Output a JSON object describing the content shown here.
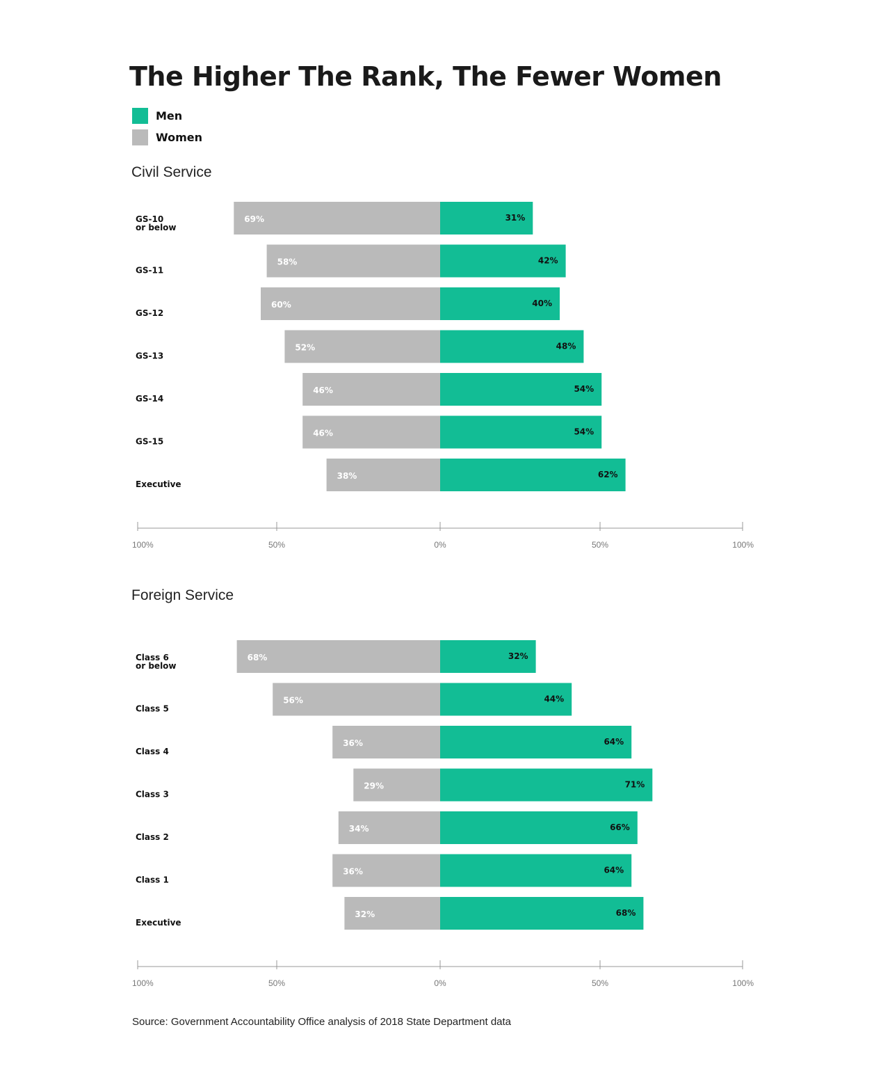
{
  "title": "The Higher The Rank, The Fewer Women",
  "legend": [
    {
      "label": "Men",
      "color": "#12bd95"
    },
    {
      "label": "Women",
      "color": "#bababa"
    }
  ],
  "colors": {
    "men": "#12bd95",
    "women": "#bababa",
    "axis": "#999999"
  },
  "source": "Source: Government Accountability Office analysis of 2018 State Department data",
  "chart_data": [
    {
      "type": "bar",
      "title": "Civil Service",
      "categories": [
        [
          "GS-10",
          "or below"
        ],
        [
          "GS-11"
        ],
        [
          "GS-12"
        ],
        [
          "GS-13"
        ],
        [
          "GS-14"
        ],
        [
          "GS-15"
        ],
        [
          "Executive"
        ]
      ],
      "series": [
        {
          "name": "Women",
          "values": [
            69,
            58,
            60,
            52,
            46,
            46,
            38
          ],
          "labels": [
            "69%",
            "58%",
            "60%",
            "52%",
            "46%",
            "46%",
            "38%"
          ]
        },
        {
          "name": "Men",
          "values": [
            31,
            42,
            40,
            48,
            54,
            54,
            62
          ],
          "labels": [
            "31%",
            "42%",
            "40%",
            "48%",
            "54%",
            "54%",
            "62%"
          ]
        }
      ],
      "xlim": [
        -100,
        100
      ],
      "ticks": [
        {
          "value": -100,
          "label": "100%"
        },
        {
          "value": -50,
          "label": "50%"
        },
        {
          "value": 0,
          "label": "0%"
        },
        {
          "value": 50,
          "label": "50%"
        },
        {
          "value": 100,
          "label": "100%"
        }
      ]
    },
    {
      "type": "bar",
      "title": "Foreign Service",
      "categories": [
        [
          "Class 6",
          "or below"
        ],
        [
          "Class 5"
        ],
        [
          "Class 4"
        ],
        [
          "Class 3"
        ],
        [
          "Class 2"
        ],
        [
          "Class 1"
        ],
        [
          "Executive"
        ]
      ],
      "series": [
        {
          "name": "Women",
          "values": [
            68,
            56,
            36,
            29,
            34,
            36,
            32
          ],
          "labels": [
            "68%",
            "56%",
            "36%",
            "29%",
            "34%",
            "36%",
            "32%"
          ]
        },
        {
          "name": "Men",
          "values": [
            32,
            44,
            64,
            71,
            66,
            64,
            68
          ],
          "labels": [
            "32%",
            "44%",
            "64%",
            "71%",
            "66%",
            "64%",
            "68%"
          ]
        }
      ],
      "xlim": [
        -100,
        100
      ],
      "ticks": [
        {
          "value": -100,
          "label": "100%"
        },
        {
          "value": -50,
          "label": "50%"
        },
        {
          "value": 0,
          "label": "0%"
        },
        {
          "value": 50,
          "label": "50%"
        },
        {
          "value": 100,
          "label": "100%"
        }
      ]
    }
  ]
}
